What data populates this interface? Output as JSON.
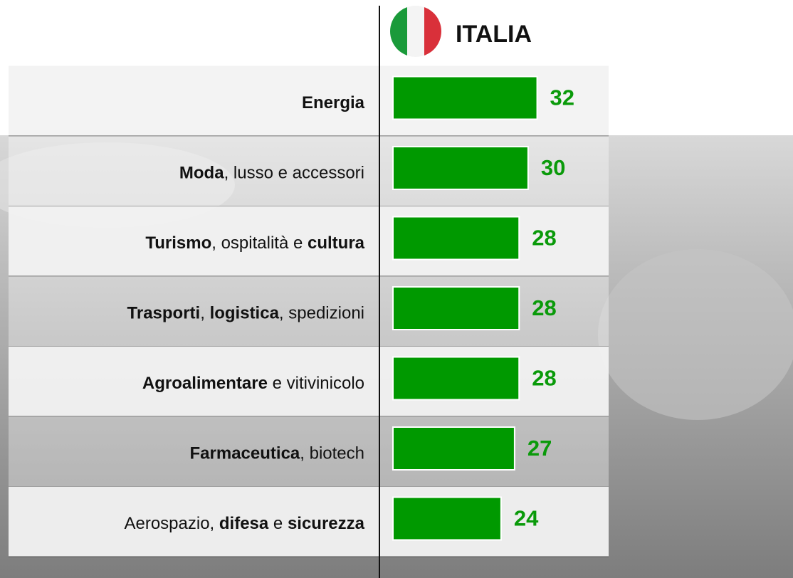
{
  "chart_data": {
    "type": "hbar",
    "title": "ITALIA",
    "categories": [
      [
        {
          "text": "Energia",
          "bold": true
        }
      ],
      [
        {
          "text": "Moda",
          "bold": true
        },
        {
          "text": ", lusso e accessori"
        }
      ],
      [
        {
          "text": "Turismo",
          "bold": true
        },
        {
          "text": ", ospitalità e "
        },
        {
          "text": "cultura",
          "bold": true
        }
      ],
      [
        {
          "text": "Trasporti",
          "bold": true
        },
        {
          "text": ", "
        },
        {
          "text": "logistica",
          "bold": true
        },
        {
          "text": ", spedizioni"
        }
      ],
      [
        {
          "text": "Agroalimentare",
          "bold": true
        },
        {
          "text": " e vitivinicolo"
        }
      ],
      [
        {
          "text": "Farmaceutica",
          "bold": true
        },
        {
          "text": ", biotech"
        }
      ],
      [
        {
          "text": "Aerospazio, "
        },
        {
          "text": "difesa",
          "bold": true
        },
        {
          "text": " e "
        },
        {
          "text": "sicurezza",
          "bold": true
        }
      ]
    ],
    "values": [
      32,
      30,
      28,
      28,
      28,
      27,
      24
    ],
    "color": "#009900"
  }
}
